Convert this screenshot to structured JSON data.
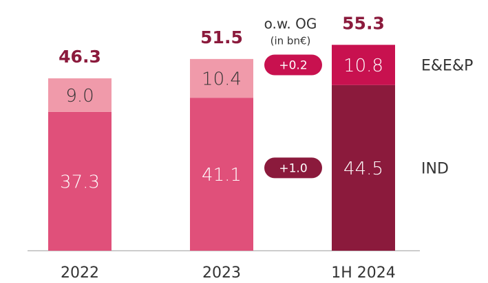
{
  "chart_data": {
    "type": "bar",
    "stacked": true,
    "categories": [
      "2022",
      "2023",
      "1H 2024"
    ],
    "series": [
      {
        "name": "IND",
        "colors": [
          "#e0507a",
          "#e0507a",
          "#8b1a3c"
        ],
        "values": [
          37.3,
          41.1,
          44.5
        ]
      },
      {
        "name": "E&E&P",
        "colors": [
          "#f09aaa",
          "#f09aaa",
          "#c8114f"
        ],
        "values": [
          9.0,
          10.4,
          10.8
        ],
        "value_labels": [
          "9.0",
          "10.4",
          "10.8"
        ]
      }
    ],
    "totals": [
      46.3,
      51.5,
      55.3
    ],
    "totals_color": "#8b1a3c",
    "annotation": {
      "title": "o.w. OG",
      "subtitle": "(in bn€)",
      "deltas": [
        "+1.0",
        "+0.2"
      ]
    }
  }
}
